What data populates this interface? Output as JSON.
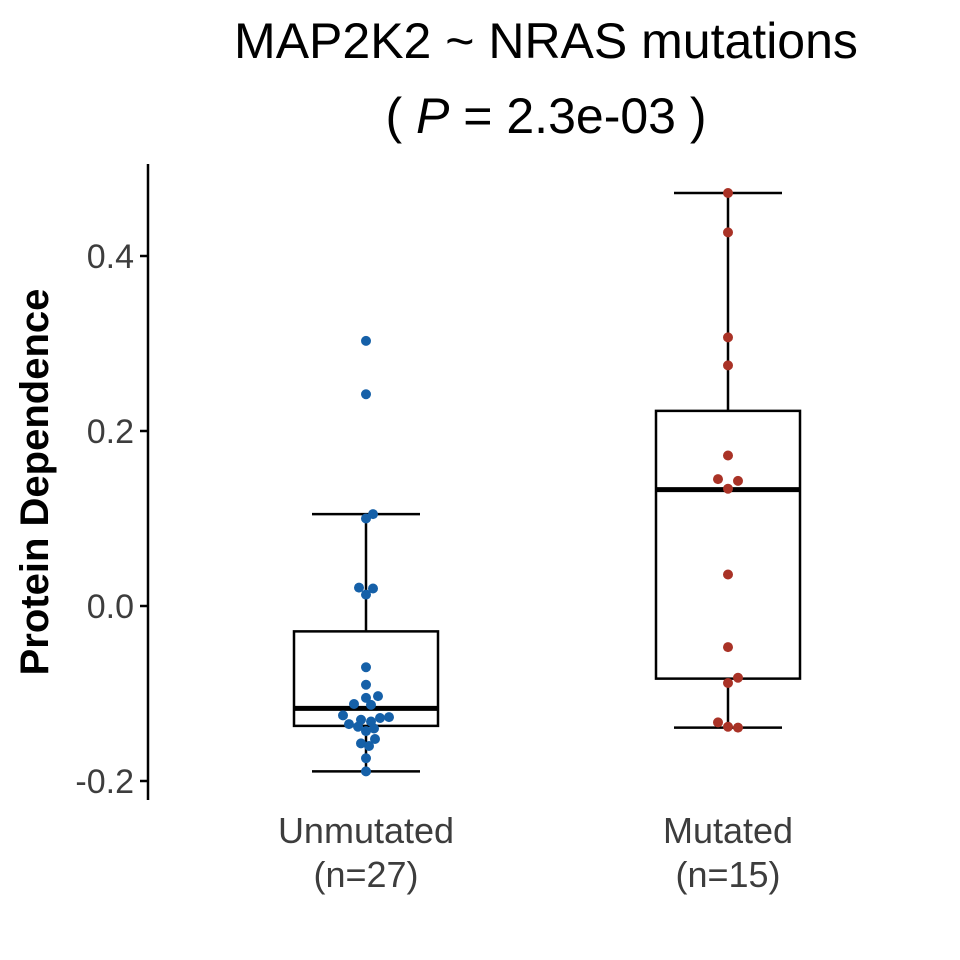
{
  "chart_data": {
    "type": "box",
    "title_line1": "MAP2K2 ~ NRAS mutations",
    "title_line2_prefix": "( ",
    "title_line2_p": "P",
    "title_line2_suffix": " = 2.3e-03 )",
    "xlabel": "",
    "ylabel": "Protein Dependence",
    "ylim": [
      -0.22,
      0.5
    ],
    "yticks": [
      -0.2,
      0.0,
      0.2,
      0.4
    ],
    "ytick_labels": [
      "-0.2",
      "0.0",
      "0.2",
      "0.4"
    ],
    "grid": false,
    "groups": [
      {
        "label_line1": "Unmutated",
        "label_line2": "(n=27)",
        "color": "#1560a8",
        "box": {
          "whisker_low": -0.189,
          "q1": -0.137,
          "median": -0.117,
          "q3": -0.029,
          "whisker_high": 0.105
        },
        "points": [
          {
            "y": 0.303,
            "dx": 0.0
          },
          {
            "y": 0.242,
            "dx": 0.0
          },
          {
            "y": 0.105,
            "dx": 0.07
          },
          {
            "y": 0.1,
            "dx": 0.0
          },
          {
            "y": 0.021,
            "dx": -0.07
          },
          {
            "y": 0.02,
            "dx": 0.07
          },
          {
            "y": 0.013,
            "dx": 0.0
          },
          {
            "y": -0.07,
            "dx": 0.0
          },
          {
            "y": -0.09,
            "dx": 0.0
          },
          {
            "y": -0.103,
            "dx": 0.12
          },
          {
            "y": -0.105,
            "dx": 0.0
          },
          {
            "y": -0.112,
            "dx": -0.12
          },
          {
            "y": -0.113,
            "dx": 0.05
          },
          {
            "y": -0.125,
            "dx": -0.23
          },
          {
            "y": -0.127,
            "dx": 0.23
          },
          {
            "y": -0.128,
            "dx": 0.14
          },
          {
            "y": -0.13,
            "dx": -0.05
          },
          {
            "y": -0.132,
            "dx": 0.05
          },
          {
            "y": -0.135,
            "dx": -0.17
          },
          {
            "y": -0.138,
            "dx": -0.08
          },
          {
            "y": -0.14,
            "dx": 0.08
          },
          {
            "y": -0.143,
            "dx": 0.0
          },
          {
            "y": -0.152,
            "dx": 0.09
          },
          {
            "y": -0.157,
            "dx": -0.05
          },
          {
            "y": -0.16,
            "dx": 0.03
          },
          {
            "y": -0.174,
            "dx": 0.0
          },
          {
            "y": -0.189,
            "dx": 0.0
          }
        ]
      },
      {
        "label_line1": "Mutated",
        "label_line2": "(n=15)",
        "color": "#a93226",
        "box": {
          "whisker_low": -0.139,
          "q1": -0.083,
          "median": 0.133,
          "q3": 0.223,
          "whisker_high": 0.472
        },
        "points": [
          {
            "y": 0.472,
            "dx": 0.0
          },
          {
            "y": 0.427,
            "dx": 0.0
          },
          {
            "y": 0.307,
            "dx": 0.0
          },
          {
            "y": 0.275,
            "dx": 0.0
          },
          {
            "y": 0.172,
            "dx": 0.0
          },
          {
            "y": 0.145,
            "dx": -0.1
          },
          {
            "y": 0.143,
            "dx": 0.1
          },
          {
            "y": 0.134,
            "dx": 0.0
          },
          {
            "y": 0.036,
            "dx": 0.0
          },
          {
            "y": -0.047,
            "dx": 0.0
          },
          {
            "y": -0.082,
            "dx": 0.1
          },
          {
            "y": -0.088,
            "dx": 0.0
          },
          {
            "y": -0.133,
            "dx": -0.1
          },
          {
            "y": -0.138,
            "dx": 0.0
          },
          {
            "y": -0.139,
            "dx": 0.1
          }
        ]
      }
    ]
  }
}
